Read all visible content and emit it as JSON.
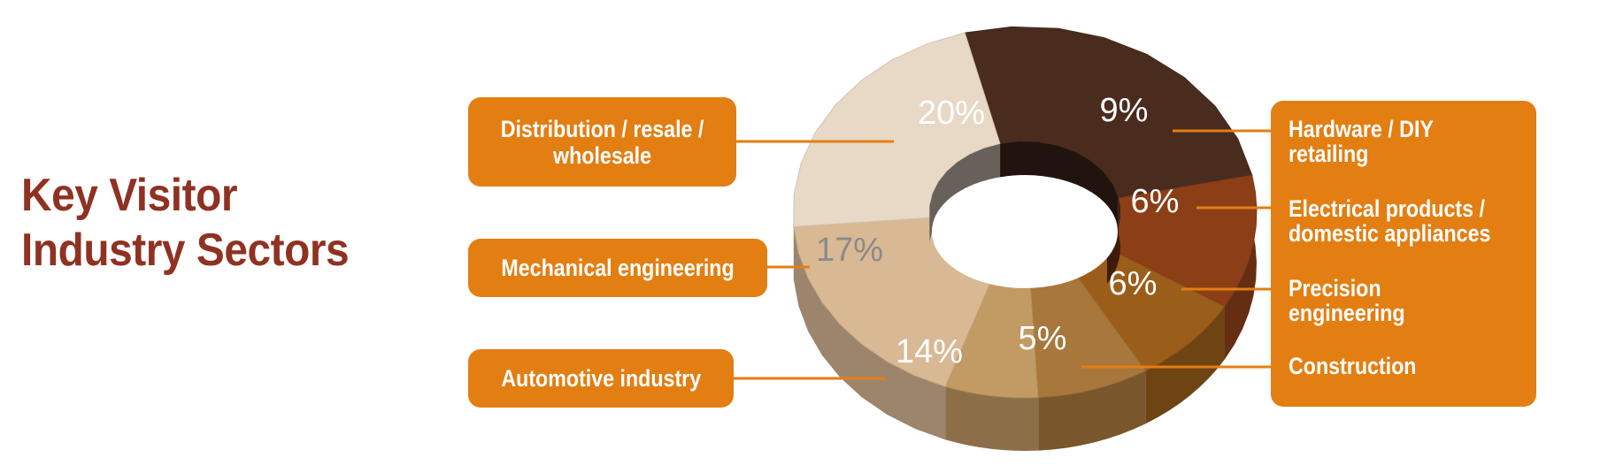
{
  "title": {
    "line1": "Key Visitor",
    "line2": "Industry Sectors"
  },
  "chart_data": {
    "type": "pie",
    "title": "Key Visitor Industry Sectors",
    "categories": [
      "Distribution / resale / wholesale",
      "Hardware / DIY retailing",
      "Electrical products / domestic appliances",
      "Precision engineering",
      "Construction",
      "Automotive industry",
      "Mechanical engineering"
    ],
    "values": [
      20,
      9,
      6,
      6,
      5,
      14,
      17
    ],
    "value_labels": [
      "20%",
      "9%",
      "6%",
      "6%",
      "5%",
      "14%",
      "17%"
    ],
    "unit": "%",
    "style": "donut-3d",
    "colors": [
      "#4a2c1f",
      "#8c3f17",
      "#9a5e1a",
      "#a8773c",
      "#c29a64",
      "#d8b994",
      "#e8d8c6"
    ],
    "label_color": "#e37e12"
  },
  "labels": {
    "distribution": {
      "line1": "Distribution / resale /",
      "line2": "wholesale"
    },
    "mechanical": "Mechanical engineering",
    "automotive": "Automotive industry",
    "hardware": {
      "line1": "Hardware / DIY",
      "line2": "retailing"
    },
    "electrical": {
      "line1": "Electrical products /",
      "line2": "domestic appliances"
    },
    "precision": {
      "line1": "Precision",
      "line2": "engineering"
    },
    "construction": "Construction"
  }
}
